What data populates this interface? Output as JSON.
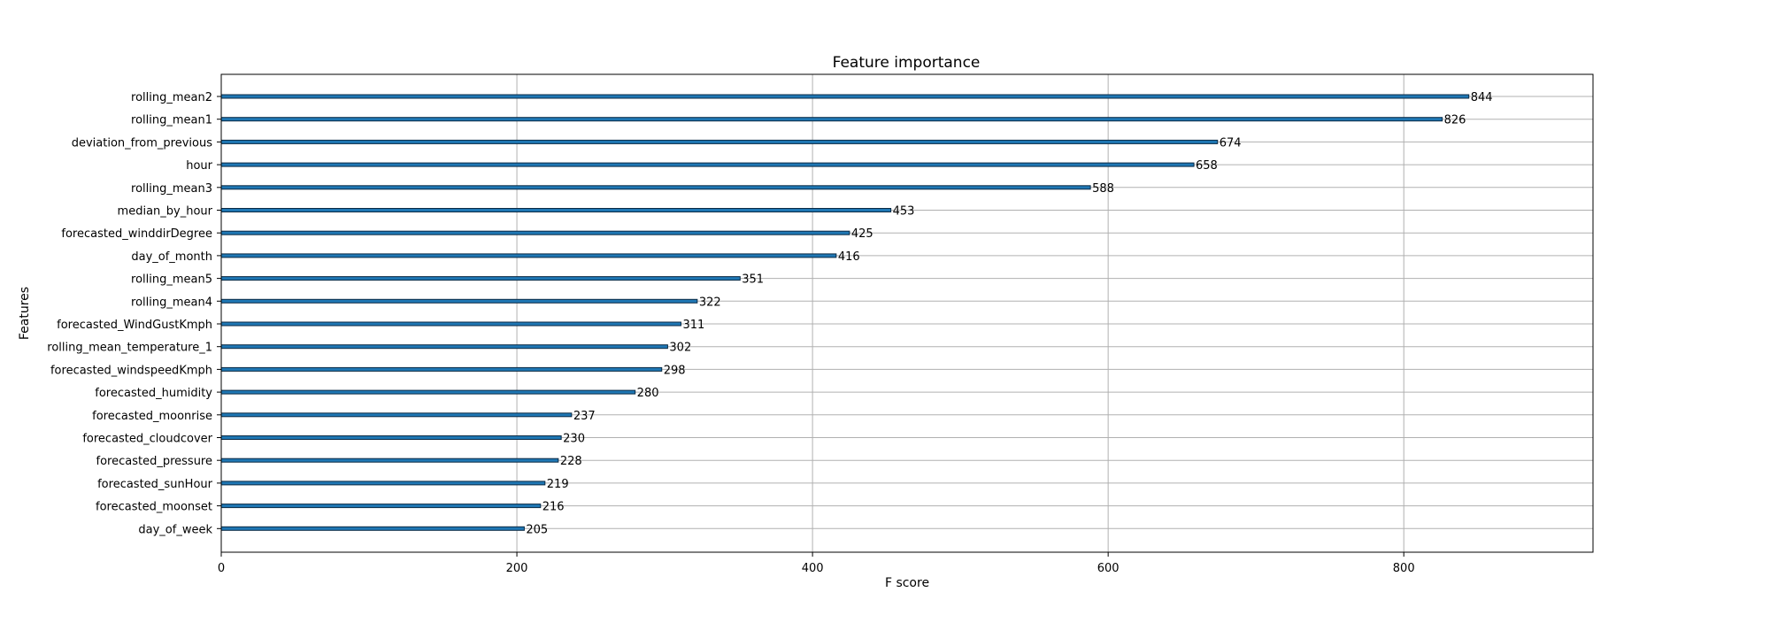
{
  "chart_data": {
    "type": "bar",
    "orientation": "horizontal",
    "title": "Feature importance",
    "xlabel": "F score",
    "ylabel": "Features",
    "xlim": [
      0,
      928
    ],
    "xticks": [
      0,
      200,
      400,
      600,
      800
    ],
    "grid": true,
    "categories": [
      "rolling_mean2",
      "rolling_mean1",
      "deviation_from_previous",
      "hour",
      "rolling_mean3",
      "median_by_hour",
      "forecasted_winddirDegree",
      "day_of_month",
      "rolling_mean5",
      "rolling_mean4",
      "forecasted_WindGustKmph",
      "rolling_mean_temperature_1",
      "forecasted_windspeedKmph",
      "forecasted_humidity",
      "forecasted_moonrise",
      "forecasted_cloudcover",
      "forecasted_pressure",
      "forecasted_sunHour",
      "forecasted_moonset",
      "day_of_week"
    ],
    "values": [
      844,
      826,
      674,
      658,
      588,
      453,
      425,
      416,
      351,
      322,
      311,
      302,
      298,
      280,
      237,
      230,
      228,
      219,
      216,
      205
    ],
    "bar_color": "#1f77b4"
  }
}
